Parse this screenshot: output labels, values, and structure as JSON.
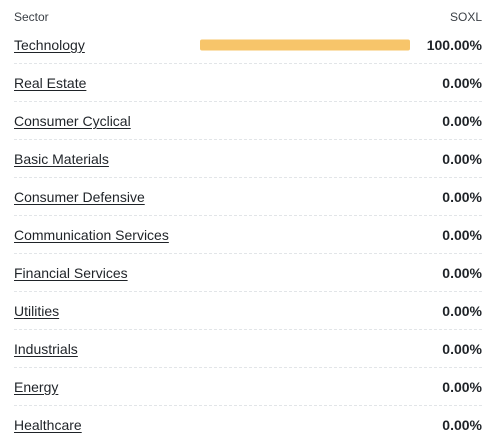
{
  "header": {
    "sector_label": "Sector",
    "fund_label": "SOXL"
  },
  "colors": {
    "bar": "#f7c56a"
  },
  "rows": [
    {
      "name": "Technology",
      "value": "100.00%",
      "fraction": 1.0
    },
    {
      "name": "Real Estate",
      "value": "0.00%",
      "fraction": 0
    },
    {
      "name": "Consumer Cyclical",
      "value": "0.00%",
      "fraction": 0
    },
    {
      "name": "Basic Materials",
      "value": "0.00%",
      "fraction": 0
    },
    {
      "name": "Consumer Defensive",
      "value": "0.00%",
      "fraction": 0
    },
    {
      "name": "Communication Services",
      "value": "0.00%",
      "fraction": 0
    },
    {
      "name": "Financial Services",
      "value": "0.00%",
      "fraction": 0
    },
    {
      "name": "Utilities",
      "value": "0.00%",
      "fraction": 0
    },
    {
      "name": "Industrials",
      "value": "0.00%",
      "fraction": 0
    },
    {
      "name": "Energy",
      "value": "0.00%",
      "fraction": 0
    },
    {
      "name": "Healthcare",
      "value": "0.00%",
      "fraction": 0
    }
  ]
}
